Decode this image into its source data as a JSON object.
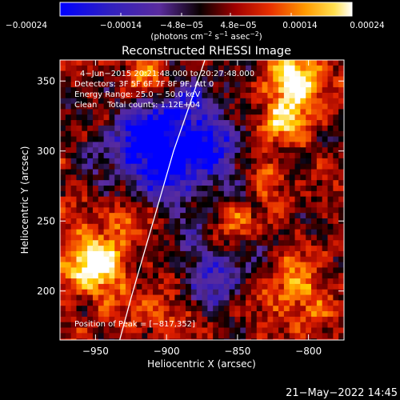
{
  "chart_data": {
    "type": "heatmap",
    "title": "Reconstructed RHESSI Image",
    "xlabel": "Heliocentric X (arcsec)",
    "ylabel": "Heliocentric Y (arcsec)",
    "xlim": [
      -975,
      -775
    ],
    "ylim": [
      165,
      365
    ],
    "x_ticks": [
      -950,
      -900,
      -850,
      -800
    ],
    "x_tick_labels": [
      "−950",
      "−900",
      "−850",
      "−800"
    ],
    "y_ticks": [
      200,
      250,
      300,
      350
    ],
    "y_tick_labels": [
      "200",
      "250",
      "300",
      "350"
    ],
    "colorbar": {
      "range": [
        -0.00024,
        0.00024
      ],
      "tick_labels": [
        "−0.00024",
        "−0.00014",
        "−4.8e−05",
        "4.8e−05",
        "0.00014",
        "0.00024"
      ],
      "units_prefix": "(photons cm",
      "units_exp1": "−2",
      "units_mid1": " s",
      "units_exp2": "−1",
      "units_mid2": " asec",
      "units_exp3": "−2",
      "units_suffix": ")"
    },
    "annotations": {
      "time": "4−Jun−2015 20:21:48.000 to 20:27:48.000",
      "detectors": "Detectors: 3F 5F 6F 7F 8F 9F, Att 0",
      "energy": "Energy Range: 25.0 − 50.0 keV",
      "clean": "Clean    Total counts: 1.12E+04",
      "peak": "Position of Peak = [−817,352]"
    },
    "limb_curve": [
      [
        -933,
        165
      ],
      [
        -925,
        195
      ],
      [
        -915,
        230
      ],
      [
        -905,
        265
      ],
      [
        -895,
        300
      ],
      [
        -883,
        335
      ],
      [
        -873,
        365
      ]
    ],
    "colormap": [
      "#0000ff",
      "#3a1fb0",
      "#5a2c9e",
      "#000000",
      "#8a0000",
      "#e02000",
      "#ff7a00",
      "#ffd200",
      "#ffffff"
    ]
  },
  "footer": {
    "date": "21−May−2022 14:45"
  }
}
